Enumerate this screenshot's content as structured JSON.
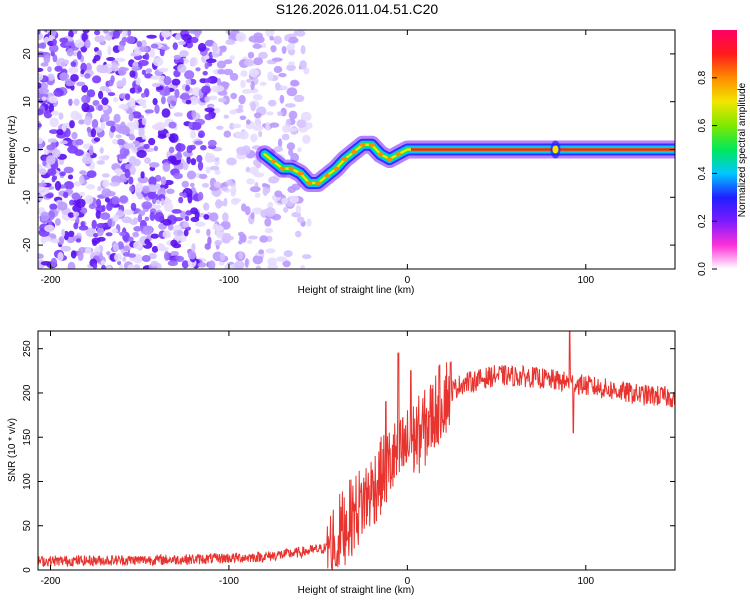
{
  "title": "S126.2026.011.04.51.C20",
  "colors": {
    "trace": "#e8342f",
    "axis": "#000000",
    "colorbar": [
      "#ffffff",
      "#ff2fd8",
      "#7a1cff",
      "#1f1fff",
      "#00c8ff",
      "#00e85a",
      "#7fe800",
      "#f2e600",
      "#ff8c00",
      "#ff1a1a",
      "#ff0066"
    ]
  },
  "chart_data": [
    {
      "type": "heatmap",
      "name": "spectrogram",
      "xlabel": "Height of straight line (km)",
      "ylabel": "Frequency (Hz)",
      "xlim": [
        -207,
        150
      ],
      "ylim": [
        -25,
        25
      ],
      "xticks": [
        -200,
        -100,
        0,
        100
      ],
      "yticks": [
        -20,
        -10,
        0,
        10,
        20
      ],
      "ridge": {
        "x": [
          -80,
          -75,
          -70,
          -65,
          -60,
          -55,
          -50,
          -45,
          -40,
          -35,
          -30,
          -25,
          -20,
          -15,
          -10,
          -5,
          0,
          10,
          40,
          80,
          85,
          150
        ],
        "y": [
          -1,
          -2.5,
          -4,
          -4,
          -5,
          -7,
          -7,
          -5.5,
          -4,
          -2,
          -0.5,
          1,
          1,
          -1,
          -2,
          -1,
          0,
          0,
          0,
          0,
          0,
          0
        ]
      },
      "colorbar": {
        "label": "Normalized spectral amplitude",
        "ticks": [
          "0.0",
          "0.2",
          "0.4",
          "0.6",
          "0.8"
        ],
        "range": [
          0,
          1
        ]
      }
    },
    {
      "type": "line",
      "name": "snr",
      "xlabel": "Height of straight line (km)",
      "ylabel": "SNR (10 * v/v)",
      "xlim": [
        -207,
        150
      ],
      "ylim": [
        0,
        270
      ],
      "xticks": [
        -200,
        -100,
        0,
        100
      ],
      "yticks": [
        0,
        50,
        100,
        150,
        200,
        250
      ],
      "trend": {
        "x": [
          -207,
          -120,
          -80,
          -60,
          -45,
          -35,
          -20,
          -10,
          0,
          10,
          20,
          30,
          50,
          70,
          90,
          110,
          130,
          150
        ],
        "y": [
          10,
          12,
          15,
          20,
          25,
          50,
          90,
          120,
          140,
          160,
          195,
          210,
          220,
          218,
          212,
          205,
          198,
          195
        ]
      },
      "spikes": [
        {
          "x": -5,
          "y": 245
        },
        {
          "x": -12,
          "y": 190
        },
        {
          "x": 2,
          "y": 225
        },
        {
          "x": 91,
          "y": 270
        },
        {
          "x": 93,
          "y": 155
        },
        {
          "x": -40,
          "y": 5
        }
      ]
    }
  ]
}
